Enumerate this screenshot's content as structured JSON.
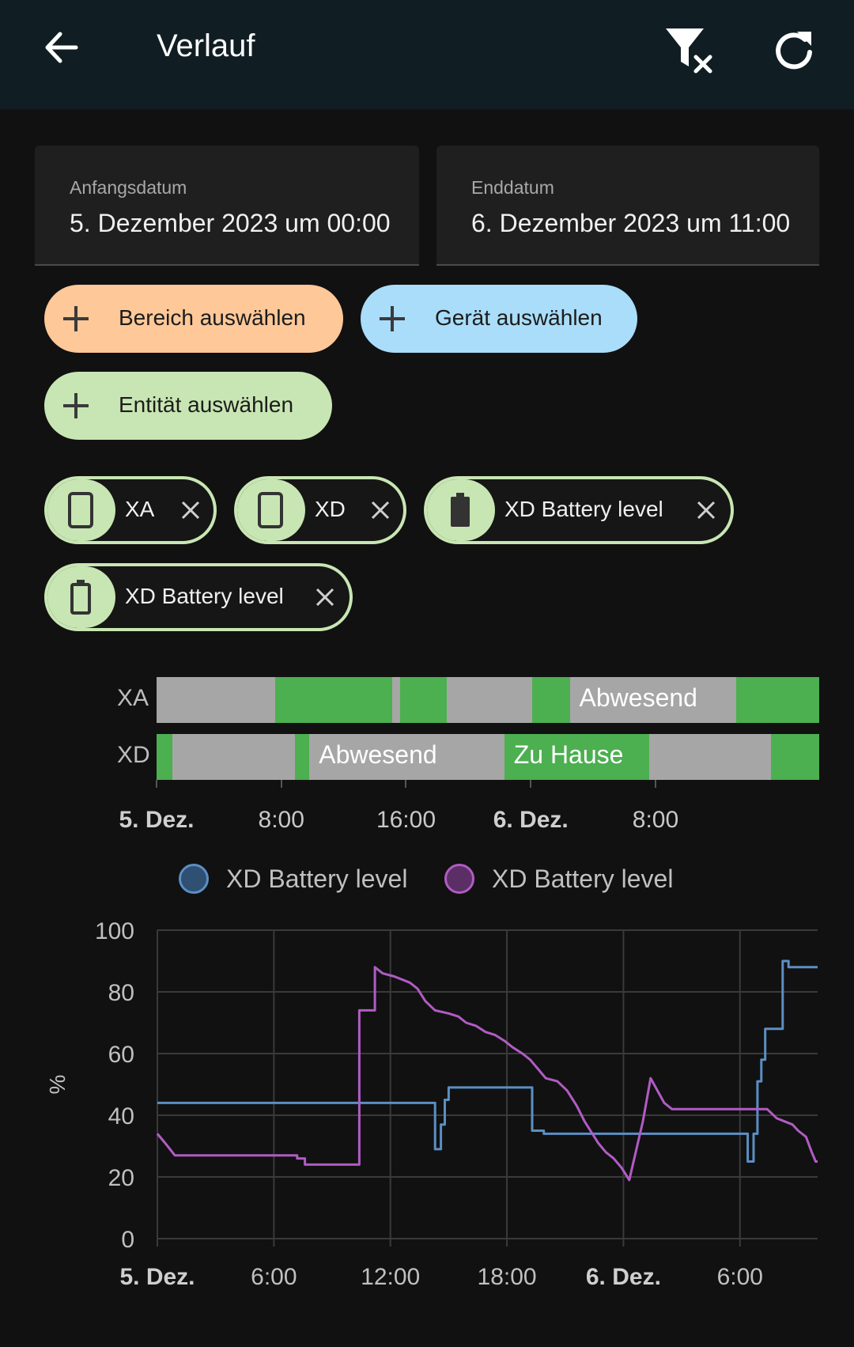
{
  "header": {
    "title": "Verlauf"
  },
  "dates": {
    "start_label": "Anfangsdatum",
    "start_value": "5. Dezember 2023 um 00:00",
    "end_label": "Enddatum",
    "end_value": "6. Dezember 2023 um 11:00"
  },
  "pickers": {
    "area": "Bereich auswählen",
    "device": "Gerät auswählen",
    "entity": "Entität auswählen"
  },
  "chips": [
    "XA",
    "XD",
    "XD Battery level",
    "XD Battery level"
  ],
  "timeline": {
    "rows": [
      {
        "label": "XA",
        "segments": [
          {
            "from": 0.0,
            "to": 7.6,
            "state": "away"
          },
          {
            "from": 7.6,
            "to": 15.1,
            "state": "home"
          },
          {
            "from": 15.1,
            "to": 15.6,
            "state": "away"
          },
          {
            "from": 15.6,
            "to": 18.6,
            "state": "home"
          },
          {
            "from": 18.6,
            "to": 24.1,
            "state": "away"
          },
          {
            "from": 24.1,
            "to": 26.5,
            "state": "home"
          },
          {
            "from": 26.5,
            "to": 37.2,
            "state": "away",
            "text": "Abwesend"
          },
          {
            "from": 37.2,
            "to": 42.5,
            "state": "home"
          }
        ]
      },
      {
        "label": "XD",
        "segments": [
          {
            "from": 0.0,
            "to": 1.0,
            "state": "home"
          },
          {
            "from": 1.0,
            "to": 8.9,
            "state": "away"
          },
          {
            "from": 8.9,
            "to": 9.8,
            "state": "home"
          },
          {
            "from": 9.8,
            "to": 22.3,
            "state": "away",
            "text": "Abwesend"
          },
          {
            "from": 22.3,
            "to": 31.6,
            "state": "home",
            "text": "Zu Hause"
          },
          {
            "from": 31.6,
            "to": 39.4,
            "state": "away"
          },
          {
            "from": 39.4,
            "to": 42.5,
            "state": "home"
          }
        ]
      }
    ],
    "ticks": [
      {
        "t": 0,
        "label": "5. Dez.",
        "bold": true
      },
      {
        "t": 8,
        "label": "8:00",
        "bold": false
      },
      {
        "t": 16,
        "label": "16:00",
        "bold": false
      },
      {
        "t": 24,
        "label": "6. Dez.",
        "bold": true
      },
      {
        "t": 32,
        "label": "8:00",
        "bold": false
      }
    ],
    "colors": {
      "home": "#4caf50",
      "away": "#a6a6a6"
    }
  },
  "chart_data": {
    "type": "line",
    "ylabel": "%",
    "ylim": [
      0,
      100
    ],
    "yticks": [
      0,
      20,
      40,
      60,
      80,
      100
    ],
    "xlim_hours": [
      0,
      34
    ],
    "xticks": [
      {
        "t": 0,
        "label": "5. Dez.",
        "bold": true
      },
      {
        "t": 6,
        "label": "6:00",
        "bold": false
      },
      {
        "t": 12,
        "label": "12:00",
        "bold": false
      },
      {
        "t": 18,
        "label": "18:00",
        "bold": false
      },
      {
        "t": 24,
        "label": "6. Dez.",
        "bold": true
      },
      {
        "t": 30,
        "label": "6:00",
        "bold": false
      }
    ],
    "grid": true,
    "legend_position": "top",
    "series": [
      {
        "name": "XD Battery level",
        "color": "#5b8fc4",
        "legend_color": "#2f4f73",
        "points": [
          [
            0,
            44
          ],
          [
            14.3,
            44
          ],
          [
            14.3,
            29
          ],
          [
            14.6,
            29
          ],
          [
            14.6,
            37
          ],
          [
            14.8,
            37
          ],
          [
            14.8,
            45
          ],
          [
            15.0,
            45
          ],
          [
            15.0,
            49
          ],
          [
            19.3,
            49
          ],
          [
            19.3,
            35
          ],
          [
            19.9,
            35
          ],
          [
            19.9,
            34
          ],
          [
            30.4,
            34
          ],
          [
            30.4,
            25
          ],
          [
            30.7,
            25
          ],
          [
            30.7,
            34
          ],
          [
            30.9,
            34
          ],
          [
            30.9,
            51
          ],
          [
            31.1,
            51
          ],
          [
            31.1,
            58
          ],
          [
            31.3,
            58
          ],
          [
            31.3,
            68
          ],
          [
            32.2,
            68
          ],
          [
            32.2,
            90
          ],
          [
            32.5,
            90
          ],
          [
            32.5,
            88
          ],
          [
            34,
            88
          ]
        ]
      },
      {
        "name": "XD Battery level",
        "color": "#b05cc4",
        "legend_color": "#5c2e66",
        "points": [
          [
            0,
            34
          ],
          [
            0.4,
            31
          ],
          [
            0.9,
            27
          ],
          [
            7.2,
            27
          ],
          [
            7.2,
            26
          ],
          [
            7.6,
            26
          ],
          [
            7.6,
            24
          ],
          [
            10.4,
            24
          ],
          [
            10.4,
            74
          ],
          [
            11.2,
            74
          ],
          [
            11.2,
            88
          ],
          [
            11.6,
            86
          ],
          [
            12.2,
            85
          ],
          [
            13.0,
            83
          ],
          [
            13.4,
            81
          ],
          [
            13.8,
            77
          ],
          [
            14.3,
            74
          ],
          [
            15.0,
            73
          ],
          [
            15.5,
            72
          ],
          [
            15.9,
            70
          ],
          [
            16.4,
            69
          ],
          [
            16.9,
            67
          ],
          [
            17.4,
            66
          ],
          [
            17.9,
            64
          ],
          [
            18.3,
            62
          ],
          [
            18.8,
            60
          ],
          [
            19.2,
            58
          ],
          [
            19.6,
            55
          ],
          [
            20.0,
            52
          ],
          [
            20.6,
            51
          ],
          [
            21.1,
            48
          ],
          [
            21.6,
            43
          ],
          [
            22.0,
            38
          ],
          [
            22.3,
            35
          ],
          [
            22.7,
            31
          ],
          [
            23.1,
            28
          ],
          [
            23.5,
            26
          ],
          [
            23.9,
            23
          ],
          [
            24.1,
            21
          ],
          [
            24.3,
            19
          ],
          [
            25.0,
            38
          ],
          [
            25.4,
            52
          ],
          [
            26.1,
            44
          ],
          [
            26.5,
            42
          ],
          [
            31.0,
            42
          ],
          [
            31.4,
            42
          ],
          [
            31.9,
            39
          ],
          [
            32.3,
            38
          ],
          [
            32.7,
            37
          ],
          [
            33.0,
            35
          ],
          [
            33.4,
            33
          ],
          [
            33.7,
            28
          ],
          [
            33.9,
            25
          ],
          [
            34,
            25
          ]
        ]
      }
    ]
  }
}
